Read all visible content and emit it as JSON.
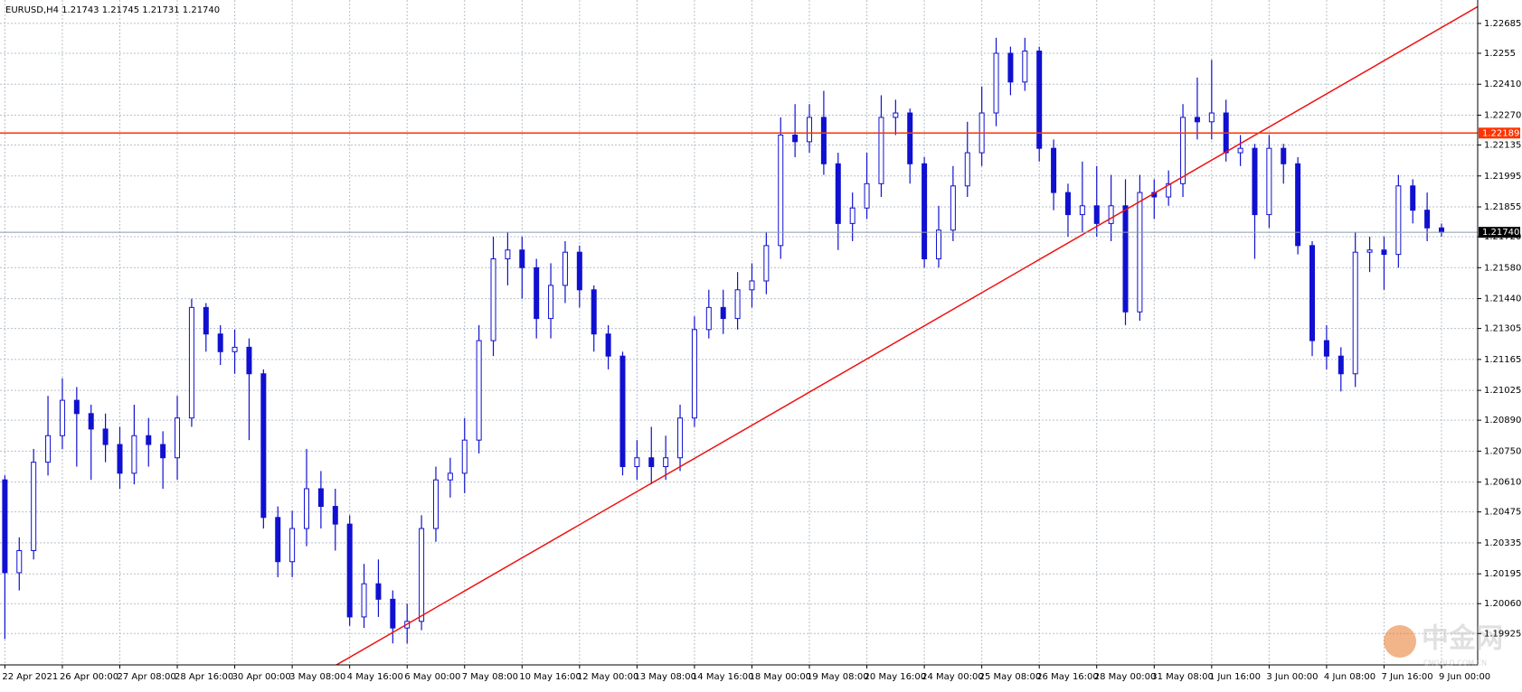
{
  "chart_data": {
    "type": "candlestick",
    "title": "EURUSD,H4  1.21743 1.21745 1.21731 1.21740",
    "categories": [
      "22 Apr 2021",
      null,
      null,
      null,
      "26 Apr 00:00",
      null,
      null,
      null,
      "27 Apr 08:00",
      null,
      null,
      null,
      "28 Apr 16:00",
      null,
      null,
      null,
      "30 Apr 00:00",
      null,
      null,
      null,
      "3 May 08:00",
      null,
      null,
      null,
      "4 May 16:00",
      null,
      null,
      null,
      "6 May 00:00",
      null,
      null,
      null,
      "7 May 08:00",
      null,
      null,
      null,
      "10 May 16:00",
      null,
      null,
      null,
      "12 May 00:00",
      null,
      null,
      null,
      "13 May 08:00",
      null,
      null,
      null,
      "14 May 16:00",
      null,
      null,
      null,
      "18 May 00:00",
      null,
      null,
      null,
      "19 May 08:00",
      null,
      null,
      null,
      "20 May 16:00",
      null,
      null,
      null,
      "24 May 00:00",
      null,
      null,
      null,
      "25 May 08:00",
      null,
      null,
      null,
      "26 May 16:00",
      null,
      null,
      null,
      "28 May 00:00",
      null,
      null,
      null,
      "31 May 08:00",
      null,
      null,
      null,
      "1 Jun 16:00",
      null,
      null,
      null,
      "3 Jun 00:00",
      null,
      null,
      null,
      "4 Jun 08:00",
      null,
      null,
      null,
      "7 Jun 16:00",
      null,
      null,
      null,
      "9 Jun 00:00"
    ],
    "open": [
      1.2062,
      1.202,
      1.203,
      1.207,
      1.2082,
      1.2098,
      1.2092,
      1.2085,
      1.2078,
      1.2065,
      1.2082,
      1.2078,
      1.2072,
      1.209,
      1.214,
      1.2128,
      1.212,
      1.2122,
      1.211,
      1.2045,
      1.2025,
      1.204,
      1.2058,
      1.205,
      1.2042,
      1.2,
      1.2015,
      1.2008,
      1.1995,
      1.1998,
      1.204,
      1.2062,
      1.2065,
      1.208,
      1.2125,
      1.2162,
      1.2166,
      1.2158,
      1.2135,
      1.215,
      1.2165,
      1.2148,
      1.2128,
      1.2118,
      1.2068,
      1.2072,
      1.2068,
      1.2072,
      1.209,
      1.213,
      1.214,
      1.2135,
      1.2148,
      1.2152,
      1.2168,
      1.2218,
      1.2215,
      1.2226,
      1.2205,
      1.2178,
      1.2185,
      1.2196,
      1.2226,
      1.2228,
      1.2205,
      1.2162,
      1.2175,
      1.2195,
      1.221,
      1.2228,
      1.2255,
      1.2242,
      1.2256,
      1.2212,
      1.2192,
      1.2182,
      1.2186,
      1.2178,
      1.2186,
      1.2138,
      1.2192,
      1.219,
      1.2196,
      1.2226,
      1.2224,
      1.2228,
      1.221,
      1.2212,
      1.2182,
      1.2212,
      1.2205,
      1.2168,
      1.2125,
      1.2118,
      1.211,
      1.2165,
      1.2166,
      1.2164,
      1.2195,
      1.2184,
      1.2176
    ],
    "high": [
      1.2064,
      1.2036,
      1.2076,
      1.21,
      1.2108,
      1.2104,
      1.2096,
      1.2092,
      1.2086,
      1.2096,
      1.209,
      1.2084,
      1.21,
      1.2144,
      1.2142,
      1.2132,
      1.213,
      1.2126,
      1.2112,
      1.205,
      1.2048,
      1.2076,
      1.2066,
      1.2058,
      1.2046,
      1.2024,
      1.2026,
      1.2012,
      1.2006,
      1.2046,
      1.2068,
      1.2072,
      1.209,
      1.2132,
      1.2172,
      1.2174,
      1.2172,
      1.2162,
      1.216,
      1.217,
      1.2168,
      1.215,
      1.2132,
      1.212,
      1.208,
      1.2086,
      1.2082,
      1.2096,
      1.2136,
      1.2148,
      1.2148,
      1.2156,
      1.216,
      1.2174,
      1.2226,
      1.2232,
      1.2232,
      1.2238,
      1.221,
      1.2192,
      1.221,
      1.2236,
      1.2234,
      1.223,
      1.2208,
      1.2186,
      1.2204,
      1.2224,
      1.224,
      1.2262,
      1.2258,
      1.2262,
      1.2258,
      1.2216,
      1.2196,
      1.2206,
      1.2204,
      1.22,
      1.2198,
      1.22,
      1.2198,
      1.2202,
      1.2232,
      1.2244,
      1.2252,
      1.2234,
      1.2218,
      1.2214,
      1.2218,
      1.2214,
      1.2208,
      1.217,
      1.2132,
      1.2122,
      1.2174,
      1.2172,
      1.2172,
      1.22,
      1.2198,
      1.2192,
      1.2178
    ],
    "low": [
      1.199,
      1.2012,
      1.2026,
      1.2064,
      1.2076,
      1.2068,
      1.2062,
      1.207,
      1.2058,
      1.206,
      1.2068,
      1.2058,
      1.2062,
      1.2086,
      1.212,
      1.2114,
      1.211,
      1.208,
      1.204,
      1.2018,
      1.2018,
      1.2032,
      1.204,
      1.203,
      1.1996,
      1.1995,
      1.2,
      1.1988,
      1.1988,
      1.1994,
      1.2034,
      1.2054,
      1.2056,
      1.2074,
      1.2118,
      1.215,
      1.2144,
      1.2126,
      1.2126,
      1.2142,
      1.214,
      1.212,
      1.2112,
      1.2064,
      1.2062,
      1.206,
      1.2062,
      1.2066,
      1.2086,
      1.2126,
      1.2128,
      1.213,
      1.214,
      1.2146,
      1.2162,
      1.2208,
      1.221,
      1.22,
      1.2166,
      1.217,
      1.218,
      1.219,
      1.2218,
      1.2196,
      1.2158,
      1.2158,
      1.217,
      1.219,
      1.2204,
      1.2222,
      1.2236,
      1.2238,
      1.2206,
      1.2184,
      1.2172,
      1.2174,
      1.2172,
      1.217,
      1.2132,
      1.2134,
      1.218,
      1.2186,
      1.219,
      1.2216,
      1.2216,
      1.2206,
      1.2204,
      1.2162,
      1.2176,
      1.2196,
      1.2164,
      1.2118,
      1.2112,
      1.2102,
      1.2104,
      1.2156,
      1.2148,
      1.2158,
      1.2178,
      1.217,
      1.2172
    ],
    "close": [
      1.202,
      1.203,
      1.207,
      1.2082,
      1.2098,
      1.2092,
      1.2085,
      1.2078,
      1.2065,
      1.2082,
      1.2078,
      1.2072,
      1.209,
      1.214,
      1.2128,
      1.212,
      1.2122,
      1.211,
      1.2045,
      1.2025,
      1.204,
      1.2058,
      1.205,
      1.2042,
      1.2,
      1.2015,
      1.2008,
      1.1995,
      1.1998,
      1.204,
      1.2062,
      1.2065,
      1.208,
      1.2125,
      1.2162,
      1.2166,
      1.2158,
      1.2135,
      1.215,
      1.2165,
      1.2148,
      1.2128,
      1.2118,
      1.2068,
      1.2072,
      1.2068,
      1.2072,
      1.209,
      1.213,
      1.214,
      1.2135,
      1.2148,
      1.2152,
      1.2168,
      1.2218,
      1.2215,
      1.2226,
      1.2205,
      1.2178,
      1.2185,
      1.2196,
      1.2226,
      1.2228,
      1.2205,
      1.2162,
      1.2175,
      1.2195,
      1.221,
      1.2228,
      1.2255,
      1.2242,
      1.2256,
      1.2212,
      1.2192,
      1.2182,
      1.2186,
      1.2178,
      1.2186,
      1.2138,
      1.2192,
      1.219,
      1.2196,
      1.2226,
      1.2224,
      1.2228,
      1.221,
      1.2212,
      1.2182,
      1.2212,
      1.2205,
      1.2168,
      1.2125,
      1.2118,
      1.211,
      1.2165,
      1.2166,
      1.2164,
      1.2195,
      1.2184,
      1.2176,
      1.2174
    ],
    "color": "#1010d0",
    "ylim": [
      1.19783,
      1.22791
    ],
    "yticks": [
      1.22685,
      1.2255,
      {
        "value": 1.2241,
        "label": "1.22410"
      },
      {
        "value": 1.2227,
        "label": "1.22270"
      },
      1.22135,
      1.21995,
      1.21855,
      {
        "value": 1.2172,
        "label": "1.21720"
      },
      {
        "value": 1.2158,
        "label": "1.21580"
      },
      {
        "value": 1.2144,
        "label": "1.21440"
      },
      1.21305,
      1.21165,
      1.21025,
      {
        "value": 1.2089,
        "label": "1.20890"
      },
      {
        "value": 1.2075,
        "label": "1.20750"
      },
      {
        "value": 1.2061,
        "label": "1.20610"
      },
      1.20475,
      1.20335,
      1.20195,
      {
        "value": 1.2006,
        "label": "1.20060"
      },
      1.19925
    ],
    "grid": true,
    "hlines": [
      {
        "value": 1.22189,
        "label": "1.22189",
        "color": "#ff3300"
      },
      {
        "value": 1.2174,
        "label": "1.21740",
        "color": "#8a9bb0"
      }
    ],
    "trendline": {
      "x": [
        23,
        102.5
      ],
      "y": [
        1.1978,
        1.2276
      ],
      "color": "#ee1111"
    },
    "watermark": {
      "text": "中金网",
      "subtext": "CNGOLD.COM.CN"
    }
  }
}
